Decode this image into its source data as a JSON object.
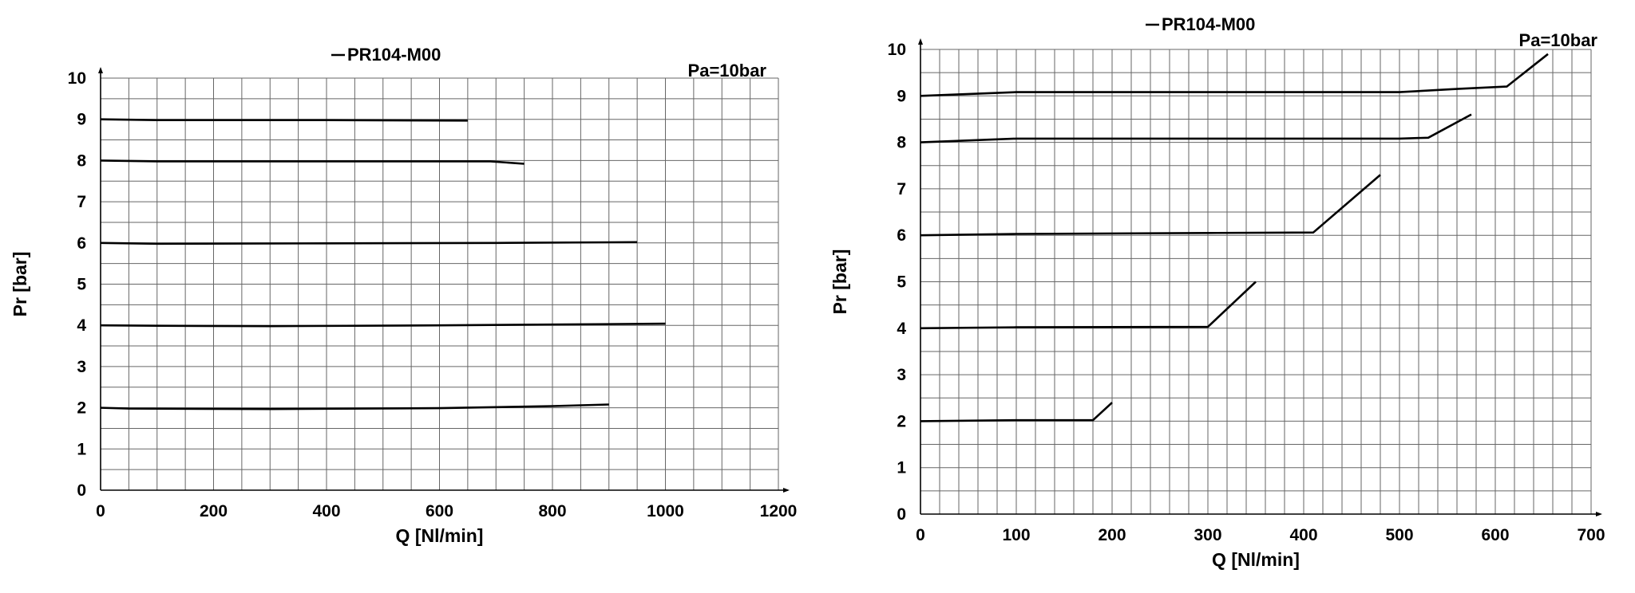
{
  "chart_data": [
    {
      "type": "line",
      "legend": "PR104-M00",
      "legend_placement": "top",
      "annotation": "Pa=10bar",
      "xlabel": "Q [Nl/min]",
      "ylabel": "Pr [bar]",
      "xlim": [
        0,
        1200
      ],
      "ylim": [
        0,
        10
      ],
      "x_ticks": [
        "0",
        "200",
        "400",
        "600",
        "800",
        "1000",
        "1200"
      ],
      "y_ticks": [
        "0",
        "1",
        "2",
        "3",
        "4",
        "5",
        "6",
        "7",
        "8",
        "9",
        "10"
      ],
      "grid": true,
      "series": [
        {
          "points": [
            [
              0,
              9.0
            ],
            [
              100,
              8.98
            ],
            [
              400,
              8.98
            ],
            [
              650,
              8.97
            ]
          ]
        },
        {
          "points": [
            [
              0,
              8.0
            ],
            [
              100,
              7.98
            ],
            [
              400,
              7.98
            ],
            [
              690,
              7.98
            ],
            [
              750,
              7.92
            ]
          ]
        },
        {
          "points": [
            [
              0,
              6.0
            ],
            [
              100,
              5.98
            ],
            [
              400,
              5.99
            ],
            [
              700,
              6.0
            ],
            [
              950,
              6.02
            ]
          ]
        },
        {
          "points": [
            [
              0,
              4.0
            ],
            [
              100,
              3.99
            ],
            [
              300,
              3.98
            ],
            [
              600,
              4.0
            ],
            [
              1000,
              4.04
            ]
          ]
        },
        {
          "points": [
            [
              0,
              2.0
            ],
            [
              50,
              1.98
            ],
            [
              300,
              1.97
            ],
            [
              600,
              1.99
            ],
            [
              800,
              2.04
            ],
            [
              900,
              2.08
            ]
          ]
        }
      ]
    },
    {
      "type": "line",
      "legend": "PR104-M00",
      "legend_placement": "top",
      "annotation": "Pa=10bar",
      "xlabel": "Q [Nl/min]",
      "ylabel": "Pr [bar]",
      "xlim": [
        0,
        700
      ],
      "ylim": [
        0,
        10
      ],
      "x_ticks": [
        "0",
        "100",
        "200",
        "300",
        "400",
        "500",
        "600",
        "700"
      ],
      "y_ticks": [
        "0",
        "1",
        "2",
        "3",
        "4",
        "5",
        "6",
        "7",
        "8",
        "9",
        "10"
      ],
      "grid": true,
      "series": [
        {
          "points": [
            [
              0,
              9.0
            ],
            [
              100,
              9.08
            ],
            [
              500,
              9.08
            ],
            [
              560,
              9.15
            ],
            [
              612,
              9.2
            ],
            [
              655,
              9.9
            ]
          ]
        },
        {
          "points": [
            [
              0,
              8.0
            ],
            [
              100,
              8.08
            ],
            [
              500,
              8.08
            ],
            [
              530,
              8.1
            ],
            [
              575,
              8.6
            ]
          ]
        },
        {
          "points": [
            [
              0,
              6.0
            ],
            [
              100,
              6.03
            ],
            [
              300,
              6.05
            ],
            [
              410,
              6.06
            ],
            [
              480,
              7.3
            ]
          ]
        },
        {
          "points": [
            [
              0,
              4.0
            ],
            [
              100,
              4.02
            ],
            [
              300,
              4.03
            ],
            [
              350,
              5.0
            ]
          ]
        },
        {
          "points": [
            [
              0,
              2.0
            ],
            [
              100,
              2.02
            ],
            [
              180,
              2.02
            ],
            [
              200,
              2.4
            ]
          ]
        }
      ]
    }
  ]
}
